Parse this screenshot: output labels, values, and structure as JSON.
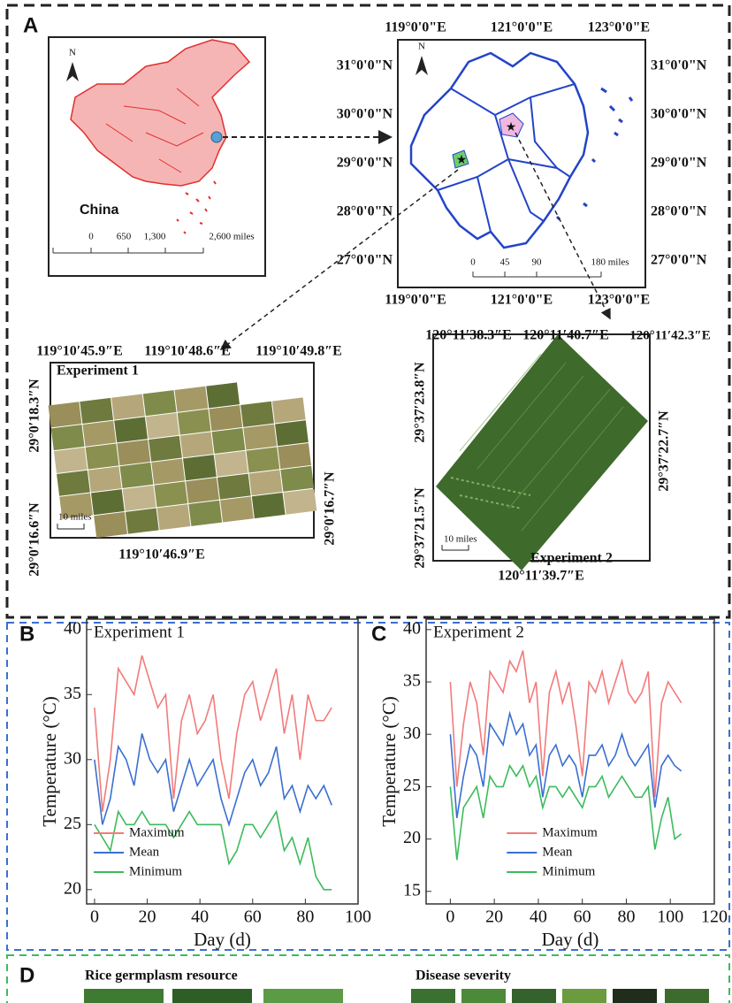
{
  "panel_labels": [
    "A",
    "B",
    "C",
    "D"
  ],
  "china_map": {
    "north": "N",
    "name": "China",
    "scale_labels": [
      "0",
      "650",
      "1,300",
      "2,600 miles"
    ]
  },
  "zhejiang_map": {
    "north": "N",
    "lon_labels": [
      "119°0'0\"E",
      "121°0'0\"E",
      "123°0'0\"E"
    ],
    "lat_labels": [
      "31°0'0\"N",
      "30°0'0\"N",
      "29°0'0\"N",
      "28°0'0\"N",
      "27°0'0\"N"
    ],
    "scale_labels": [
      "0",
      "45",
      "90",
      "180 miles"
    ]
  },
  "experiment_1": {
    "title": "Experiment 1",
    "top_labels": [
      "119°10′45.9″E",
      "119°10′48.6″E",
      "119°10′49.8″E"
    ],
    "bottom_label": "119°10′46.9″E",
    "left_labels": [
      "29°0′18.3″N",
      "29°0′16.6″N"
    ],
    "right_label": "29°0′16.7″N",
    "scale": "10 miles"
  },
  "experiment_2": {
    "title": "Experiment 2",
    "top_labels": [
      "120°11′38.3″E",
      "120°11′40.7″E",
      "120°11′42.3″E"
    ],
    "bottom_label": "120°11′39.7″E",
    "left_labels": [
      "29°37′23.8″N",
      "29°37′21.5″N"
    ],
    "right_label": "29°37′22.7″N",
    "scale": "10 miles"
  },
  "chart_data": [
    {
      "type": "line",
      "annotation": "Experiment 1",
      "x_label": "Day (d)",
      "y_label": "Temperature (°C)",
      "x": [
        0,
        3,
        6,
        9,
        12,
        15,
        18,
        21,
        24,
        27,
        30,
        33,
        36,
        39,
        42,
        45,
        48,
        51,
        54,
        57,
        60,
        63,
        66,
        69,
        72,
        75,
        78,
        81,
        84,
        87,
        90
      ],
      "series": [
        {
          "name": "Maximum",
          "color": "#f27b7b",
          "values": [
            34,
            26,
            30,
            37,
            36,
            35,
            38,
            36,
            34,
            35,
            27,
            33,
            35,
            32,
            33,
            35,
            30,
            27,
            32,
            35,
            36,
            33,
            35,
            37,
            32,
            35,
            30,
            35,
            33,
            33,
            34
          ]
        },
        {
          "name": "Mean",
          "color": "#3b6fd1",
          "values": [
            30,
            25,
            27,
            31,
            30,
            28,
            32,
            30,
            29,
            30,
            26,
            28,
            30,
            28,
            29,
            30,
            27,
            25,
            27,
            29,
            30,
            28,
            29,
            31,
            27,
            28,
            26,
            28,
            27,
            28,
            26.5
          ]
        },
        {
          "name": "Minimum",
          "color": "#3dbb5c",
          "values": [
            25,
            24,
            23,
            26,
            25,
            25,
            26,
            25,
            25,
            25,
            24,
            25,
            26,
            25,
            25,
            25,
            25,
            22,
            23,
            25,
            25,
            24,
            25,
            26,
            23,
            24,
            22,
            24,
            21,
            20,
            20
          ]
        }
      ],
      "xlim": [
        -3,
        100
      ],
      "xticks": [
        0,
        20,
        40,
        60,
        80,
        100
      ],
      "ylim": [
        18.9,
        40.8
      ],
      "yticks": [
        20,
        25,
        30,
        35,
        40
      ],
      "legend": "lower left"
    },
    {
      "type": "line",
      "annotation": "Experiment 2",
      "x_label": "Day (d)",
      "y_label": "Temperature (°C)",
      "x": [
        0,
        3,
        6,
        9,
        12,
        15,
        18,
        21,
        24,
        27,
        30,
        33,
        36,
        39,
        42,
        45,
        48,
        51,
        54,
        57,
        60,
        63,
        66,
        69,
        72,
        75,
        78,
        81,
        84,
        87,
        90,
        93,
        96,
        99,
        102,
        105
      ],
      "series": [
        {
          "name": "Maximum",
          "color": "#f27b7b",
          "values": [
            35,
            25,
            31,
            35,
            33,
            28,
            36,
            35,
            34,
            37,
            36,
            38,
            33,
            35,
            26,
            34,
            36,
            33,
            35,
            31,
            26,
            35,
            34,
            36,
            33,
            35,
            37,
            34,
            33,
            34,
            36,
            24,
            33,
            35,
            34,
            33
          ]
        },
        {
          "name": "Mean",
          "color": "#3b6fd1",
          "values": [
            30,
            22,
            26,
            29,
            28,
            25,
            31,
            30,
            29,
            32,
            30,
            31,
            28,
            29,
            24,
            28,
            29,
            27,
            28,
            27,
            24,
            28,
            28,
            29,
            27,
            28,
            30,
            28,
            27,
            28,
            29,
            23,
            27,
            28,
            27,
            26.5
          ]
        },
        {
          "name": "Minimum",
          "color": "#3dbb5c",
          "values": [
            25,
            18,
            23,
            24,
            25,
            22,
            26,
            25,
            25,
            27,
            26,
            27,
            25,
            26,
            23,
            25,
            25,
            24,
            25,
            24,
            23,
            25,
            25,
            26,
            24,
            25,
            26,
            25,
            24,
            24,
            25,
            19,
            22,
            24,
            20,
            20.5
          ]
        }
      ],
      "xlim": [
        -11,
        120
      ],
      "xticks": [
        0,
        20,
        40,
        60,
        80,
        100,
        120
      ],
      "ylim": [
        13.8,
        41
      ],
      "yticks": [
        15,
        20,
        25,
        30,
        35,
        40
      ],
      "legend": "lower center"
    }
  ],
  "panel_d": {
    "titles": [
      "Rice germplasm resource",
      "Disease severity"
    ]
  }
}
